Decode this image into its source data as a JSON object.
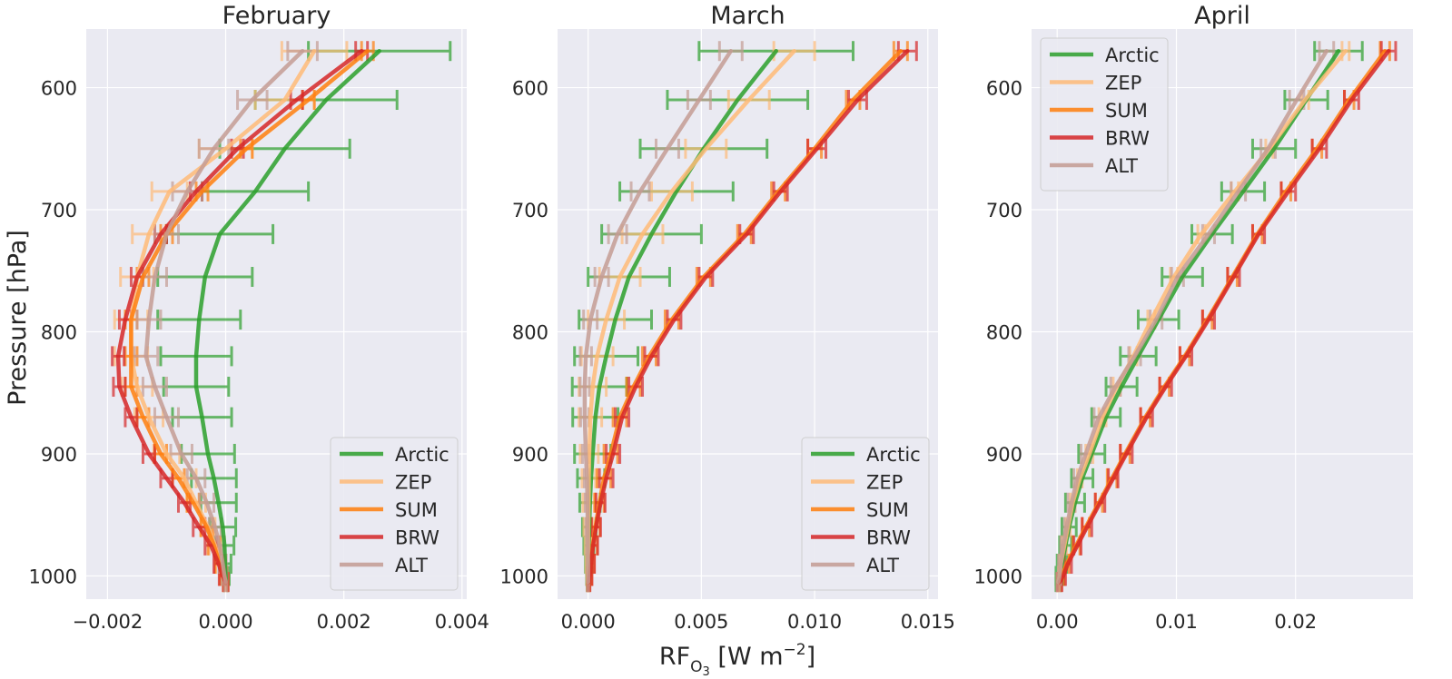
{
  "figure": {
    "ylabel": "Pressure [hPa]",
    "xlabel_main": "RF",
    "xlabel_sub": "O",
    "xlabel_subsub": "3",
    "xlabel_unit": " [W m",
    "xlabel_sup": "−2",
    "xlabel_close": "]"
  },
  "colors": {
    "Arctic": "#2ca02c",
    "ZEP": "#ffbb78",
    "SUM": "#ff7f0e",
    "BRW": "#d62728",
    "ALT": "#c49c94",
    "background": "#eaeaf2",
    "grid": "#ffffff"
  },
  "chart_data": [
    {
      "type": "line",
      "title": "February",
      "xlim": [
        -0.00236,
        0.00408
      ],
      "ylim": [
        1019,
        552
      ],
      "xticks": [
        -0.002,
        0.0,
        0.002,
        0.004
      ],
      "xtick_labels": [
        "−0.002",
        "0.000",
        "0.002",
        "0.004"
      ],
      "yticks": [
        600,
        700,
        800,
        900,
        1000
      ],
      "ytick_labels": [
        "600",
        "700",
        "800",
        "900",
        "1000"
      ],
      "legend": "lower-right",
      "grid": true,
      "pressure": [
        570,
        610,
        650,
        685,
        720,
        755,
        790,
        820,
        845,
        870,
        900,
        920,
        940,
        960,
        975,
        990,
        1000,
        1005
      ],
      "series": [
        {
          "name": "Arctic",
          "values": [
            0.0026,
            0.0017,
            0.001,
            0.0005,
            -0.0001,
            -0.00035,
            -0.00045,
            -0.0005,
            -0.0005,
            -0.0004,
            -0.0003,
            -0.0002,
            -0.00012,
            -5e-05,
            -2e-05,
            -1e-05,
            0.0,
            0.0
          ],
          "err": [
            0.0012,
            0.0012,
            0.0011,
            0.0009,
            0.0009,
            0.0008,
            0.0007,
            0.0006,
            0.00055,
            0.0005,
            0.00045,
            0.00038,
            0.0003,
            0.00022,
            0.00016,
            0.0001,
            6e-05,
            3e-05
          ]
        },
        {
          "name": "ZEP",
          "values": [
            0.0015,
            0.001,
            0.0,
            -0.00095,
            -0.0013,
            -0.0015,
            -0.0016,
            -0.0016,
            -0.0015,
            -0.0013,
            -0.001,
            -0.0007,
            -0.0005,
            -0.0003,
            -0.00018,
            -0.0001,
            -4e-05,
            0.0
          ],
          "err": [
            0.00055,
            0.0005,
            0.00045,
            0.0003,
            0.00028,
            0.00028,
            0.00028,
            0.00028,
            0.00026,
            0.00024,
            0.00022,
            0.0002,
            0.00016,
            0.00012,
            0.0001,
            7e-05,
            4e-05,
            2e-05
          ]
        },
        {
          "name": "SUM",
          "values": [
            0.0024,
            0.0014,
            0.00035,
            -0.0004,
            -0.001,
            -0.0014,
            -0.0016,
            -0.0016,
            -0.0016,
            -0.0014,
            -0.0011,
            -0.0008,
            -0.00055,
            -0.00032,
            -0.0002,
            -0.0001,
            -4e-05,
            0.0
          ],
          "err": [
            0.0001,
            0.0001,
            0.0001,
            0.0001,
            0.0001,
            0.0001,
            0.0001,
            0.0001,
            0.0001,
            0.0001,
            0.0001,
            0.0001,
            0.0001,
            0.0001,
            0.0001,
            8e-05,
            6e-05,
            4e-05
          ]
        },
        {
          "name": "BRW",
          "values": [
            0.0023,
            0.0012,
            0.0002,
            -0.0005,
            -0.0011,
            -0.0015,
            -0.0017,
            -0.00182,
            -0.0018,
            -0.0016,
            -0.0013,
            -0.001,
            -0.0007,
            -0.00045,
            -0.00025,
            -0.00012,
            -5e-05,
            0.0
          ],
          "err": [
            0.0001,
            0.0001,
            0.0001,
            0.0001,
            0.0001,
            0.0001,
            0.0001,
            0.0001,
            0.0001,
            0.0001,
            0.0001,
            0.0001,
            0.0001,
            0.0001,
            0.0001,
            8e-05,
            6e-05,
            4e-05
          ]
        },
        {
          "name": "ALT",
          "values": [
            0.0013,
            0.00045,
            -0.0002,
            -0.00065,
            -0.001,
            -0.0012,
            -0.0013,
            -0.00135,
            -0.0012,
            -0.001,
            -0.00075,
            -0.0005,
            -0.00032,
            -0.00018,
            -0.0001,
            -5e-05,
            -2e-05,
            0.0
          ],
          "err": [
            0.00025,
            0.00025,
            0.00025,
            0.00025,
            0.0002,
            0.0002,
            0.0002,
            0.0002,
            0.0002,
            0.0002,
            0.00018,
            0.00015,
            0.00012,
            0.0001,
            8e-05,
            6e-05,
            4e-05,
            2e-05
          ]
        }
      ]
    },
    {
      "type": "line",
      "title": "March",
      "xlim": [
        -0.00135,
        0.01545
      ],
      "ylim": [
        1019,
        552
      ],
      "xticks": [
        0.0,
        0.005,
        0.01,
        0.015
      ],
      "xtick_labels": [
        "0.000",
        "0.005",
        "0.010",
        "0.015"
      ],
      "yticks": [
        600,
        700,
        800,
        900,
        1000
      ],
      "ytick_labels": [
        "600",
        "700",
        "800",
        "900",
        "1000"
      ],
      "legend": "lower-right",
      "grid": true,
      "pressure": [
        570,
        610,
        650,
        685,
        720,
        755,
        790,
        820,
        845,
        870,
        900,
        920,
        940,
        960,
        975,
        990,
        1000,
        1005
      ],
      "series": [
        {
          "name": "Arctic",
          "values": [
            0.0083,
            0.0066,
            0.0051,
            0.0039,
            0.0028,
            0.0018,
            0.0012,
            0.0008,
            0.0005,
            0.00032,
            0.0002,
            0.00013,
            8e-05,
            5e-05,
            3e-05,
            2e-05,
            1e-05,
            0.0
          ],
          "err": [
            0.0034,
            0.0031,
            0.0028,
            0.0025,
            0.0022,
            0.0018,
            0.0016,
            0.0014,
            0.0012,
            0.001,
            0.0008,
            0.0006,
            0.00045,
            0.0003,
            0.00022,
            0.00014,
            8e-05,
            4e-05
          ]
        },
        {
          "name": "ZEP",
          "values": [
            0.0091,
            0.0071,
            0.0052,
            0.0037,
            0.0024,
            0.0014,
            0.0008,
            0.0004,
            0.0002,
            0.0001,
            5e-05,
            3e-05,
            2e-05,
            1e-05,
            1e-05,
            0.0,
            0.0,
            0.0
          ],
          "err": [
            0.0009,
            0.0009,
            0.0009,
            0.0009,
            0.0009,
            0.0009,
            0.0008,
            0.0007,
            0.0006,
            0.0005,
            0.0004,
            0.0003,
            0.00025,
            0.0002,
            0.00015,
            0.0001,
            6e-05,
            3e-05
          ]
        },
        {
          "name": "SUM",
          "values": [
            0.0138,
            0.0117,
            0.01,
            0.0084,
            0.0069,
            0.0051,
            0.0037,
            0.0027,
            0.002,
            0.0014,
            0.001,
            0.0007,
            0.0005,
            0.00032,
            0.0002,
            0.00012,
            6e-05,
            2e-05
          ],
          "err": [
            0.0003,
            0.0003,
            0.0003,
            0.0003,
            0.0003,
            0.0003,
            0.0003,
            0.0003,
            0.0003,
            0.0003,
            0.0003,
            0.0003,
            0.0002,
            0.0002,
            0.0002,
            0.00015,
            0.0001,
            5e-05
          ]
        },
        {
          "name": "BRW",
          "values": [
            0.0141,
            0.0119,
            0.0101,
            0.0085,
            0.007,
            0.0052,
            0.0038,
            0.0028,
            0.0021,
            0.0015,
            0.0011,
            0.0008,
            0.00055,
            0.00035,
            0.00022,
            0.00013,
            7e-05,
            3e-05
          ],
          "err": [
            0.0004,
            0.0004,
            0.0004,
            0.0003,
            0.0003,
            0.0003,
            0.0003,
            0.0003,
            0.0003,
            0.0003,
            0.0003,
            0.0003,
            0.0002,
            0.0002,
            0.0002,
            0.00015,
            0.0001,
            5e-05
          ]
        },
        {
          "name": "ALT",
          "values": [
            0.0063,
            0.0049,
            0.0035,
            0.0023,
            0.0013,
            0.0006,
            0.0001,
            -0.0001,
            -0.00015,
            -0.00015,
            -0.0001,
            -5e-05,
            -3e-05,
            -2e-05,
            -1e-05,
            0.0,
            0.0,
            0.0
          ],
          "err": [
            0.0005,
            0.0005,
            0.0005,
            0.0004,
            0.0004,
            0.0003,
            0.0003,
            0.00025,
            0.0002,
            0.00018,
            0.00015,
            0.00012,
            0.0001,
            8e-05,
            6e-05,
            4e-05,
            3e-05,
            2e-05
          ]
        }
      ]
    },
    {
      "type": "line",
      "title": "April",
      "xlim": [
        -0.00215,
        0.02985
      ],
      "ylim": [
        1019,
        552
      ],
      "xticks": [
        0.0,
        0.01,
        0.02
      ],
      "xtick_labels": [
        "0.00",
        "0.01",
        "0.02"
      ],
      "yticks": [
        600,
        700,
        800,
        900,
        1000
      ],
      "ytick_labels": [
        "600",
        "700",
        "800",
        "900",
        "1000"
      ],
      "legend": "upper-left",
      "grid": true,
      "pressure": [
        570,
        610,
        650,
        685,
        720,
        755,
        790,
        820,
        845,
        870,
        900,
        920,
        940,
        960,
        975,
        990,
        1000,
        1005
      ],
      "series": [
        {
          "name": "Arctic",
          "values": [
            0.0236,
            0.0209,
            0.0182,
            0.0156,
            0.013,
            0.0105,
            0.0085,
            0.0068,
            0.0054,
            0.0041,
            0.0029,
            0.0021,
            0.0015,
            0.001,
            0.0007,
            0.0004,
            0.0002,
            0.0001
          ],
          "err": [
            0.002,
            0.0018,
            0.0018,
            0.0018,
            0.0017,
            0.0017,
            0.0017,
            0.0015,
            0.0013,
            0.0012,
            0.0011,
            0.0009,
            0.0008,
            0.0006,
            0.0005,
            0.0004,
            0.0003,
            0.0002
          ]
        },
        {
          "name": "ZEP",
          "values": [
            0.0242,
            0.0208,
            0.0178,
            0.0149,
            0.0121,
            0.0098,
            0.0079,
            0.0064,
            0.005,
            0.0038,
            0.0027,
            0.0019,
            0.0013,
            0.0009,
            0.0006,
            0.0003,
            0.0002,
            0.0001
          ],
          "err": [
            0.0003,
            0.0003,
            0.0003,
            0.0003,
            0.0003,
            0.0003,
            0.0003,
            0.0003,
            0.0003,
            0.0003,
            0.0003,
            0.0002,
            0.0002,
            0.0002,
            0.0002,
            0.0001,
            0.0001,
            0.0001
          ]
        },
        {
          "name": "SUM",
          "values": [
            0.0275,
            0.0245,
            0.0218,
            0.0192,
            0.0168,
            0.0147,
            0.0126,
            0.0107,
            0.009,
            0.0074,
            0.0057,
            0.0046,
            0.0035,
            0.0024,
            0.0016,
            0.0008,
            0.0004,
            0.0002
          ],
          "err": [
            0.0004,
            0.0004,
            0.0004,
            0.0004,
            0.0004,
            0.0004,
            0.0004,
            0.0004,
            0.0004,
            0.0004,
            0.0004,
            0.0004,
            0.0003,
            0.0003,
            0.0003,
            0.0002,
            0.0002,
            0.0001
          ]
        },
        {
          "name": "BRW",
          "values": [
            0.0278,
            0.0247,
            0.022,
            0.0194,
            0.0169,
            0.0148,
            0.0127,
            0.0108,
            0.0091,
            0.0075,
            0.0058,
            0.0047,
            0.0036,
            0.0025,
            0.0017,
            0.0009,
            0.0005,
            0.0002
          ],
          "err": [
            0.0006,
            0.0006,
            0.0006,
            0.0006,
            0.0005,
            0.0005,
            0.0005,
            0.0005,
            0.0005,
            0.0005,
            0.0005,
            0.0004,
            0.0004,
            0.0004,
            0.0003,
            0.0003,
            0.0002,
            0.0002
          ]
        },
        {
          "name": "ALT",
          "values": [
            0.0226,
            0.0201,
            0.0177,
            0.0152,
            0.0127,
            0.0101,
            0.0083,
            0.0065,
            0.0049,
            0.0035,
            0.0024,
            0.0017,
            0.0012,
            0.0008,
            0.0005,
            0.0003,
            0.0002,
            0.0001
          ],
          "err": [
            0.0006,
            0.0006,
            0.0006,
            0.0006,
            0.0005,
            0.0005,
            0.0005,
            0.0005,
            0.0004,
            0.0004,
            0.0004,
            0.0003,
            0.0003,
            0.0002,
            0.0002,
            0.0002,
            0.0001,
            0.0001
          ]
        }
      ]
    }
  ]
}
